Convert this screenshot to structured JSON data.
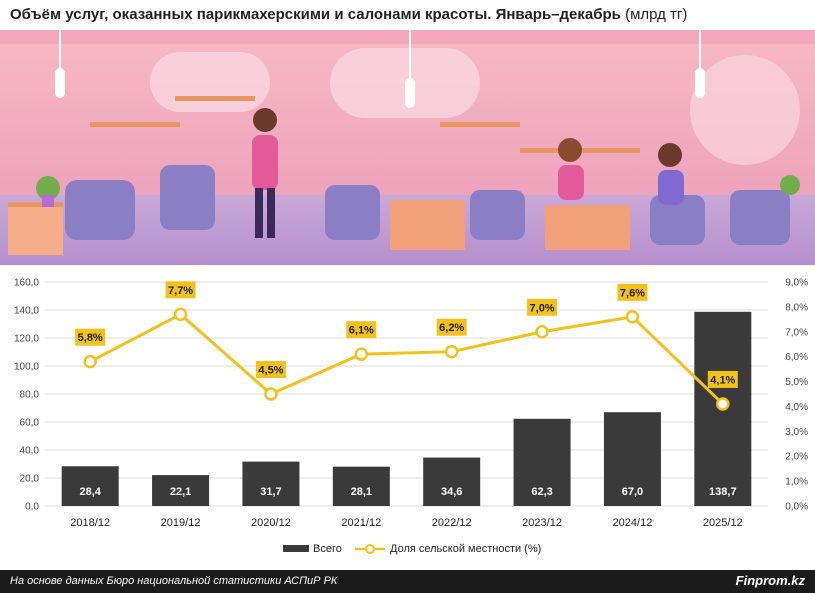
{
  "header": {
    "title": "Объём услуг, оказанных парикмахерскими и салонами красоты. Январь–декабрь",
    "unit": "(млрд тг)"
  },
  "footer": {
    "source": "На основе данных Бюро национальной статистики АСПиР РК",
    "brand": "Finprom.kz"
  },
  "chart_data": {
    "type": "bar",
    "categories": [
      "2018/12",
      "2019/12",
      "2020/12",
      "2021/12",
      "2022/12",
      "2023/12",
      "2024/12",
      "2025/12"
    ],
    "series": [
      {
        "name": "Всего",
        "type": "bar",
        "axis": "left",
        "values": [
          28.4,
          22.1,
          31.7,
          28.1,
          34.6,
          62.3,
          67.0,
          138.7
        ],
        "labels": [
          "28,4",
          "22,1",
          "31,7",
          "28,1",
          "34,6",
          "62,3",
          "67,0",
          "138,7"
        ],
        "color": "#3a3a3a"
      },
      {
        "name": "Доля сельской местности (%)",
        "type": "line",
        "axis": "right",
        "values": [
          5.8,
          7.7,
          4.5,
          6.1,
          6.2,
          7.0,
          7.6,
          4.1
        ],
        "labels": [
          "5,8%",
          "7,7%",
          "4,5%",
          "6,1%",
          "6,2%",
          "7,0%",
          "7,6%",
          "4,1%"
        ],
        "color": "#f2c21b"
      }
    ],
    "y_left": {
      "min": 0,
      "max": 160,
      "step": 20,
      "ticks": [
        "0,0",
        "20,0",
        "40,0",
        "60,0",
        "80,0",
        "100,0",
        "120,0",
        "140,0",
        "160,0"
      ]
    },
    "y_right": {
      "min": 0,
      "max": 9,
      "step": 1,
      "ticks": [
        "0,0%",
        "1,0%",
        "2,0%",
        "3,0%",
        "4,0%",
        "5,0%",
        "6,0%",
        "7,0%",
        "8,0%",
        "9,0%"
      ]
    },
    "grid": true,
    "legend_position": "bottom"
  }
}
